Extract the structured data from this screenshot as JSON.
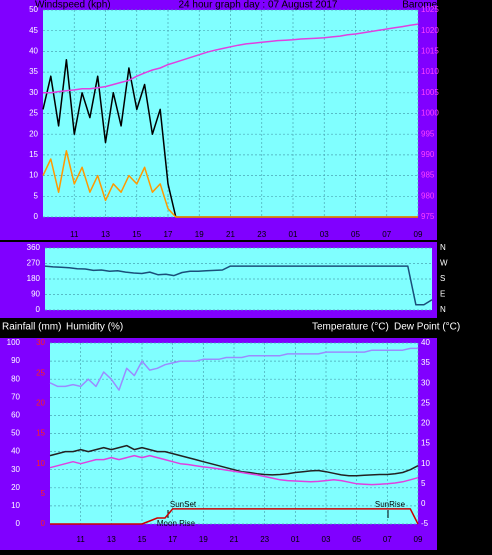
{
  "chart_data": [
    {
      "type": "line",
      "title": "24 hour graph day : 07 August 2017",
      "y_label": "Windspeed (kph)",
      "y2_label": "Barometer (hpa)",
      "x": [
        9,
        9.5,
        10,
        10.5,
        11,
        11.5,
        12,
        12.5,
        13,
        13.5,
        14,
        14.5,
        15,
        15.5,
        16,
        16.5,
        17,
        17.5,
        18,
        18.5,
        19,
        19.5,
        20,
        20.5,
        21,
        21.5,
        22,
        22.5,
        23,
        23.5,
        24,
        24.5,
        25,
        25.5,
        26,
        26.5,
        27,
        27.5,
        28,
        28.5,
        29,
        29.5,
        30,
        30.5,
        31,
        31.5,
        32,
        32.5,
        33
      ],
      "xlim": [
        9,
        33
      ],
      "xticks": [
        11,
        13,
        15,
        17,
        19,
        21,
        23,
        {
          "value": 25,
          "label": "01"
        },
        {
          "value": 27,
          "label": "03"
        },
        {
          "value": 29,
          "label": "05"
        },
        {
          "value": 31,
          "label": "07"
        },
        {
          "value": 33,
          "label": "09"
        }
      ],
      "ylim": [
        0,
        50
      ],
      "yticks": [
        0,
        5,
        10,
        15,
        20,
        25,
        30,
        35,
        40,
        45,
        50
      ],
      "ytick_color": "#ffffff",
      "y2lim": [
        975,
        1025
      ],
      "y2ticks": [
        975,
        980,
        985,
        990,
        995,
        1000,
        1005,
        1010,
        1015,
        1020,
        1025
      ],
      "y2tick_color": "#ff40ff",
      "series": [
        {
          "color": "#000000",
          "values": [
            26,
            34,
            22,
            38,
            20,
            30,
            24,
            34,
            18,
            30,
            22,
            36,
            26,
            32,
            20,
            26,
            8,
            0,
            0,
            0,
            0,
            0,
            0,
            0,
            0,
            0,
            0,
            0,
            0,
            0,
            0,
            0,
            0,
            0,
            0,
            0,
            0,
            0,
            0,
            0,
            0,
            0,
            0,
            0,
            0,
            0,
            0,
            0,
            0
          ]
        },
        {
          "color": "#ff9900",
          "values": [
            10,
            14,
            6,
            16,
            8,
            12,
            6,
            10,
            4,
            8,
            6,
            10,
            8,
            12,
            6,
            8,
            2,
            0,
            0,
            0,
            0,
            0,
            0,
            0,
            0,
            0,
            0,
            0,
            0,
            0,
            0,
            0,
            0,
            0,
            0,
            0,
            0,
            0,
            0,
            0,
            0,
            0,
            0,
            0,
            0,
            0,
            0,
            0,
            0
          ]
        },
        {
          "color": "#e040e0",
          "axis": "y2",
          "values": [
            1005,
            1005,
            1005.3,
            1005.5,
            1005.7,
            1006,
            1006,
            1006.2,
            1006.5,
            1007,
            1007.5,
            1008,
            1009,
            1009.8,
            1010.5,
            1011,
            1011.8,
            1012.4,
            1013,
            1013.6,
            1014.2,
            1014.8,
            1015.3,
            1015.7,
            1016.1,
            1016.5,
            1016.8,
            1017,
            1017.2,
            1017.4,
            1017.6,
            1017.7,
            1017.8,
            1018,
            1018.1,
            1018.2,
            1018.3,
            1018.5,
            1018.7,
            1019,
            1019.2,
            1019.5,
            1019.8,
            1020.1,
            1020.4,
            1020.7,
            1021,
            1021.3,
            1021.6
          ]
        }
      ]
    },
    {
      "type": "line",
      "x": [
        9,
        9.5,
        10,
        10.5,
        11,
        11.5,
        12,
        12.5,
        13,
        13.5,
        14,
        14.5,
        15,
        15.5,
        16,
        16.5,
        17,
        17.5,
        18,
        18.5,
        19,
        19.5,
        20,
        20.5,
        21,
        21.5,
        22,
        22.5,
        23,
        23.5,
        24,
        24.5,
        25,
        25.5,
        26,
        26.5,
        27,
        27.5,
        28,
        28.5,
        29,
        29.5,
        30,
        30.5,
        31,
        31.5,
        32,
        32.5,
        33
      ],
      "xlim": [
        9,
        33
      ],
      "ylim": [
        0,
        360
      ],
      "yticks": [
        0,
        90,
        180,
        270,
        360
      ],
      "ytick_color": "#ffffff",
      "y2lim": [
        0,
        360
      ],
      "y2ticks": [
        {
          "value": 360,
          "label": "N"
        },
        {
          "value": 270,
          "label": "W"
        },
        {
          "value": 180,
          "label": "S"
        },
        {
          "value": 90,
          "label": "E"
        },
        {
          "value": 0,
          "label": "N"
        }
      ],
      "y2tick_color": "#ffffff",
      "series": [
        {
          "color": "#1a4f7a",
          "values": [
            255,
            250,
            248,
            245,
            240,
            238,
            230,
            232,
            225,
            228,
            220,
            215,
            212,
            220,
            205,
            208,
            200,
            218,
            225,
            225,
            228,
            230,
            232,
            255,
            255,
            255,
            255,
            255,
            255,
            255,
            255,
            255,
            255,
            255,
            255,
            255,
            255,
            255,
            255,
            255,
            255,
            255,
            255,
            255,
            255,
            255,
            30,
            30,
            60
          ]
        }
      ]
    },
    {
      "type": "line",
      "y_labels": [
        "Rainfall (mm)",
        "Humidity (%)"
      ],
      "y2_labels": [
        "Temperature (°C)",
        "Dew Point (°C)"
      ],
      "annotations": [
        "SunSet",
        "SunRise",
        "Moon Rise"
      ],
      "x": [
        9,
        9.5,
        10,
        10.5,
        11,
        11.5,
        12,
        12.5,
        13,
        13.5,
        14,
        14.5,
        15,
        15.5,
        16,
        16.5,
        17,
        17.5,
        18,
        18.5,
        19,
        19.5,
        20,
        20.5,
        21,
        21.5,
        22,
        22.5,
        23,
        23.5,
        24,
        24.5,
        25,
        25.5,
        26,
        26.5,
        27,
        27.5,
        28,
        28.5,
        29,
        29.5,
        30,
        30.5,
        31,
        31.5,
        32,
        32.5,
        33
      ],
      "xlim": [
        9,
        33
      ],
      "xticks": [
        11,
        13,
        15,
        17,
        19,
        21,
        23,
        {
          "value": 25,
          "label": "01"
        },
        {
          "value": 27,
          "label": "03"
        },
        {
          "value": 29,
          "label": "05"
        },
        {
          "value": 31,
          "label": "07"
        },
        {
          "value": 33,
          "label": "09"
        }
      ],
      "ylim": [
        0,
        100
      ],
      "yticks": [
        0,
        10,
        20,
        30,
        40,
        50,
        60,
        70,
        80,
        90,
        100
      ],
      "ytick_color": "#ffffff",
      "y3lim": [
        0,
        30
      ],
      "y3ticks": [
        0,
        5,
        10,
        15,
        20,
        25,
        30
      ],
      "y3tick_color": "#ff2020",
      "y2lim": [
        -5,
        40
      ],
      "y2ticks": [
        -5,
        0,
        5,
        10,
        15,
        20,
        25,
        30,
        35,
        40
      ],
      "y2tick_color": "#ffffff",
      "series": [
        {
          "color": "#9b8cff",
          "values": [
            78,
            76,
            76,
            77,
            76,
            80,
            76,
            84,
            80,
            74,
            86,
            82,
            90,
            85,
            86,
            88,
            89,
            90,
            90,
            90,
            91,
            91,
            91,
            92,
            92,
            92,
            93,
            93,
            93,
            93,
            93,
            94,
            94,
            94,
            94,
            94,
            95,
            95,
            95,
            95,
            95,
            95,
            96,
            96,
            96,
            96,
            96,
            97,
            97
          ]
        },
        {
          "color": "#222222",
          "axis": "y2",
          "values": [
            12,
            12.5,
            13,
            13,
            13.5,
            13,
            13.5,
            14,
            13.5,
            14,
            14.5,
            13.5,
            14,
            13.5,
            13,
            13,
            12.5,
            12,
            11.5,
            11,
            10.5,
            10,
            9.5,
            9,
            8.5,
            8,
            7.8,
            7.5,
            7.3,
            7.2,
            7.3,
            7.5,
            7.8,
            8,
            8.2,
            8.3,
            8,
            7.6,
            7.2,
            7,
            7,
            7.1,
            7.2,
            7.3,
            7.3,
            7.5,
            7.8,
            8.5,
            9.5
          ]
        },
        {
          "color": "#e040e0",
          "axis": "y2",
          "values": [
            9,
            9.5,
            10,
            10.5,
            10,
            10.5,
            11,
            11,
            11.5,
            11,
            11.5,
            12,
            11.5,
            12,
            11.5,
            11,
            10.5,
            10,
            9.8,
            9.5,
            9.2,
            9,
            8.7,
            8.4,
            8.1,
            7.8,
            7.5,
            7.2,
            6.8,
            6.4,
            6,
            5.8,
            5.7,
            5.6,
            5.5,
            5.6,
            5.8,
            6,
            5.8,
            5.4,
            5,
            4.9,
            4.8,
            4.9,
            5,
            5.2,
            5.5,
            6,
            6.5
          ]
        },
        {
          "color": "#cc0000",
          "axis": "y3",
          "values": [
            0,
            0,
            0,
            0,
            0,
            0,
            0,
            0,
            0,
            0,
            0,
            0,
            0,
            0.5,
            1,
            1,
            2.5,
            2.5,
            2.5,
            2.5,
            2.5,
            2.5,
            2.5,
            2.5,
            2.5,
            2.5,
            2.5,
            2.5,
            2.5,
            2.5,
            2.5,
            2.5,
            2.5,
            2.5,
            2.5,
            2.5,
            2.5,
            2.5,
            2.5,
            2.5,
            2.5,
            2.5,
            2.5,
            2.5,
            2.5,
            2.5,
            2.5,
            2.5,
            0
          ]
        }
      ]
    }
  ]
}
